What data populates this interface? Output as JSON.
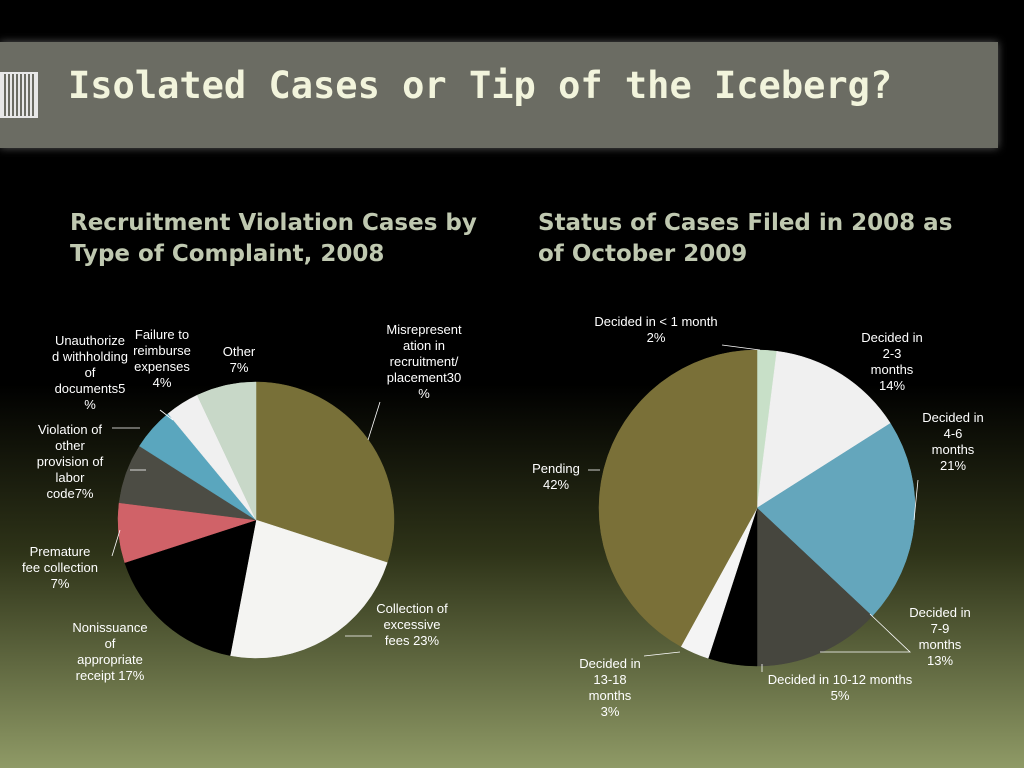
{
  "slide": {
    "title": "Isolated Cases or Tip of the Iceberg?"
  },
  "chart_data": [
    {
      "type": "pie",
      "title": "Recruitment Violation Cases by Type of Complaint, 2008",
      "categories": [
        "Misrepresentation in recruitment/ placement",
        "Collection of excessive fees",
        "Nonissuance of appropriate receipt",
        "Premature fee collection",
        "Violation of other provision of labor code",
        "Unauthorized withholding of documents",
        "Failure to reimburse expenses",
        "Other"
      ],
      "values": [
        30,
        23,
        17,
        7,
        7,
        5,
        4,
        7
      ],
      "colors": [
        "#787038",
        "#f4f4f2",
        "#000000",
        "#d06268",
        "#4c4c44",
        "#5aa6be",
        "#f0f0f0",
        "#c8d8c8"
      ],
      "labels": [
        [
          "Misrepresent",
          "ation in",
          "recruitment/",
          "placement30",
          "%"
        ],
        [
          "Collection of",
          "excessive",
          "fees  23%"
        ],
        [
          "Nonissuance",
          "of",
          "appropriate",
          "receipt 17%"
        ],
        [
          "Premature",
          "fee collection",
          "7%"
        ],
        [
          "Violation of",
          "other",
          "provision of",
          "labor",
          "code7%"
        ],
        [
          "Unauthorize",
          "d withholding",
          "of",
          "documents5",
          "%"
        ],
        [
          "Failure to",
          "reimburse",
          "expenses",
          "4%"
        ],
        [
          "Other",
          "7%"
        ]
      ]
    },
    {
      "type": "pie",
      "title": "Status of Cases Filed in 2008 as of October 2009",
      "categories": [
        "Decided in < 1 month",
        "Decided in 2-3 months",
        "Decided in 4-6 months",
        "Decided in 7-9 months",
        "Decided in 10-12 months",
        "Decided in 13-18 months",
        "Pending"
      ],
      "values": [
        2,
        14,
        21,
        13,
        5,
        3,
        42
      ],
      "colors": [
        "#c8e0c8",
        "#f0f0f0",
        "#64a6bc",
        "#46463e",
        "#000000",
        "#f4f4f4",
        "#7a7038"
      ],
      "labels": [
        [
          "Decided in < 1 month",
          "2%"
        ],
        [
          "Decided in",
          "2-3",
          "months",
          "14%"
        ],
        [
          "Decided in",
          "4-6",
          "months",
          "21%"
        ],
        [
          "Decided in",
          "7-9",
          "months",
          "13%"
        ],
        [
          "Decided in 10-12 months",
          "5%"
        ],
        [
          "Decided in",
          "13-18",
          "months",
          "3%"
        ],
        [
          "Pending",
          "42%"
        ]
      ]
    }
  ]
}
